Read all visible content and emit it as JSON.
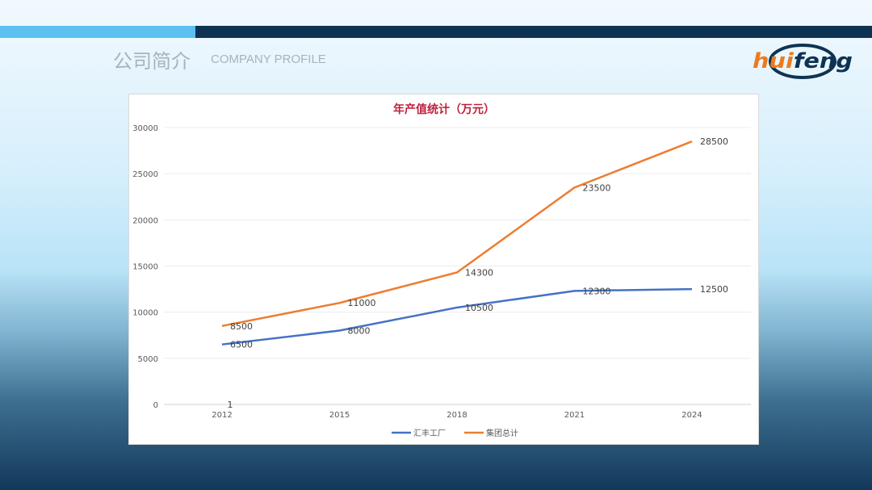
{
  "header": {
    "title_cn": "公司简介",
    "title_en": "COMPANY PROFILE",
    "logo_text": "huifeng"
  },
  "colors": {
    "accent_light": "#5cc1f0",
    "accent_dark": "#0e3352",
    "series1": "#4472c4",
    "series2": "#ed7d31",
    "title": "#c0203a"
  },
  "chart_data": {
    "type": "line",
    "title": "年产值统计（万元）",
    "categories": [
      "2012",
      "2015",
      "2018",
      "2021",
      "2024"
    ],
    "ylim": [
      0,
      30000
    ],
    "yticks": [
      0,
      5000,
      10000,
      15000,
      20000,
      25000,
      30000
    ],
    "grid": true,
    "legend": "bottom",
    "series": [
      {
        "name": "汇丰工厂",
        "values": [
          6500,
          8000,
          10500,
          12300,
          12500
        ]
      },
      {
        "name": "集团总计",
        "values": [
          8500,
          11000,
          14300,
          23500,
          28500
        ]
      }
    ],
    "annotations": [
      {
        "text": "1",
        "x": "2012",
        "y": 0
      }
    ]
  }
}
